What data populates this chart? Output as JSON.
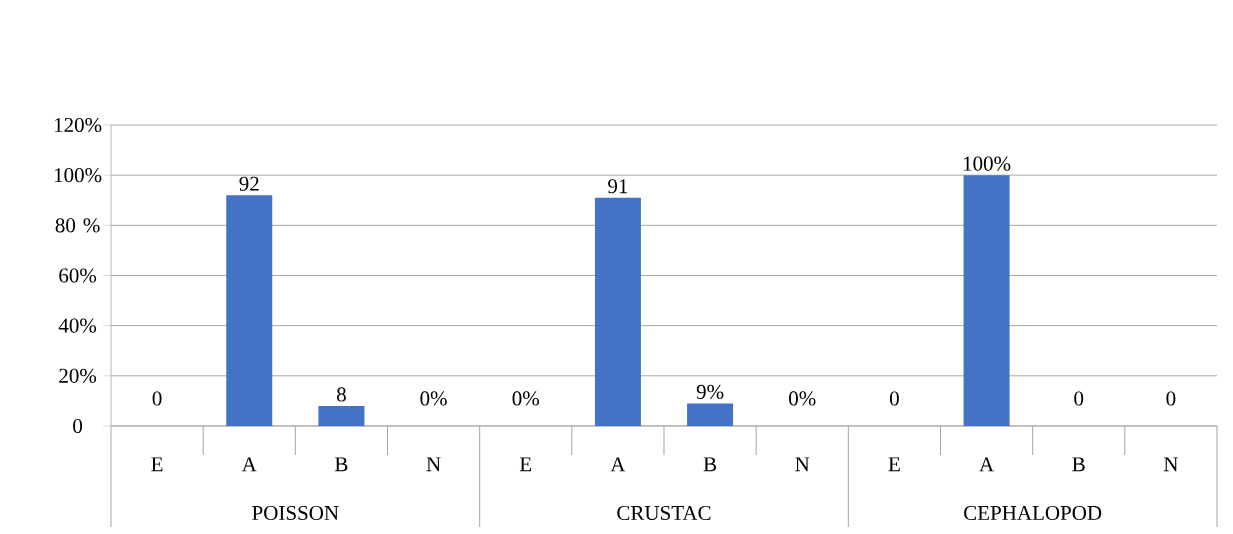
{
  "chart_data": {
    "type": "bar",
    "categories": [
      "E",
      "A",
      "B",
      "N",
      "E",
      "A",
      "B",
      "N",
      "E",
      "A",
      "B",
      "N"
    ],
    "values": [
      0,
      92,
      8,
      0,
      0,
      91,
      9,
      0,
      0,
      100,
      0,
      0
    ],
    "value_labels": [
      "0",
      "92",
      "8",
      "0%",
      "0%",
      "91",
      "9%",
      "0%",
      "0",
      "100%",
      "0",
      "0"
    ],
    "color": "#4472c4",
    "ylim": [
      0,
      120
    ],
    "yticks": [
      {
        "value": 0,
        "label": "0"
      },
      {
        "value": 20,
        "label": "20%"
      },
      {
        "value": 40,
        "label": "40%"
      },
      {
        "value": 60,
        "label": "60%"
      },
      {
        "value": 80,
        "label": "80 %"
      },
      {
        "value": 100,
        "label": "100%"
      },
      {
        "value": 120,
        "label": "120%"
      }
    ],
    "grid": "y",
    "annotations": [
      "POISSON",
      "CRUSTAC",
      "CEPHALOPOD"
    ]
  }
}
